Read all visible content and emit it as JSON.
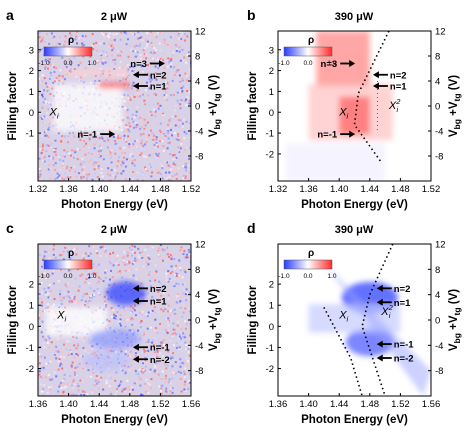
{
  "figure": {
    "shared": {
      "xlabel": "Photon Energy (eV)",
      "ylabel_left": "Filling factor",
      "ylabel_right": "V",
      "ylabel_right_sub1": "bg",
      "ylabel_right_mid": " +V",
      "ylabel_right_sub2": "tg",
      "ylabel_right_unit": " (V)",
      "colorbar_title": "ρ",
      "colorbar_ticks": [
        "-1.0",
        "0.0",
        "1.0"
      ]
    },
    "panels": [
      {
        "id": "a",
        "title": "2 μW"
      },
      {
        "id": "b",
        "title": "390 μW"
      },
      {
        "id": "c",
        "title": "2 μW"
      },
      {
        "id": "d",
        "title": "390 μW"
      }
    ]
  },
  "chart_data": [
    {
      "id": "a",
      "type": "heatmap",
      "title": "2 μW",
      "xlabel": "Photon Energy (eV)",
      "ylabel": "Filling factor",
      "y2label": "Vbg +Vtg (V)",
      "xlim": [
        1.32,
        1.52
      ],
      "xticks": [
        "1.32",
        "1.36",
        "1.40",
        "1.44",
        "1.48",
        "1.52"
      ],
      "ylim_filling": [
        -3.3,
        3.9
      ],
      "yticks_filling": [
        "-1",
        "0",
        "1",
        "2",
        "3"
      ],
      "y2lim": [
        -12,
        12
      ],
      "y2ticks": [
        "-8",
        "-4",
        "0",
        "4",
        "8",
        "12"
      ],
      "colorbar": {
        "label": "ρ",
        "range": [
          -1.0,
          1.0
        ],
        "ticks": [
          "-1.0",
          "0.0",
          "1.0"
        ]
      },
      "annotations": [
        {
          "text": "n=3",
          "x": 1.465,
          "v": 6.8,
          "arrow": "right"
        },
        {
          "text": "n=2",
          "x": 1.465,
          "v": 5.0,
          "arrow": "left"
        },
        {
          "text": "n=1",
          "x": 1.465,
          "v": 3.2,
          "arrow": "left"
        },
        {
          "text": "n=-1",
          "x": 1.4,
          "v": -4.5,
          "arrow": "right"
        }
      ],
      "feature_labels": [
        {
          "text": "X",
          "sub": "i",
          "x": 1.335,
          "v": -1.5
        }
      ]
    },
    {
      "id": "b",
      "type": "heatmap",
      "title": "390 μW",
      "xlabel": "Photon Energy (eV)",
      "ylabel": "Filling factor",
      "y2label": "Vbg +Vtg (V)",
      "xlim": [
        1.32,
        1.52
      ],
      "xticks": [
        "1.32",
        "1.36",
        "1.40",
        "1.44",
        "1.48",
        "1.52"
      ],
      "ylim_filling": [
        -3.3,
        3.9
      ],
      "yticks_filling": [
        "-2",
        "-1",
        "0",
        "1",
        "2",
        "3"
      ],
      "y2lim": [
        -12,
        12
      ],
      "y2ticks": [
        "-8",
        "-4",
        "0",
        "4",
        "8",
        "12"
      ],
      "colorbar": {
        "label": "ρ",
        "range": [
          -1.0,
          1.0
        ],
        "ticks": [
          "-1.0",
          "0.0",
          "1.0"
        ]
      },
      "annotations": [
        {
          "text": "n=3",
          "x": 1.4,
          "v": 6.8,
          "arrow": "right"
        },
        {
          "text": "n=2",
          "x": 1.465,
          "v": 5.0,
          "arrow": "left"
        },
        {
          "text": "n=1",
          "x": 1.465,
          "v": 3.2,
          "arrow": "left"
        },
        {
          "text": "n=-1",
          "x": 1.4,
          "v": -4.5,
          "arrow": "right"
        }
      ],
      "feature_labels": [
        {
          "text": "X",
          "sub": "i",
          "x": 1.4,
          "v": -1.5
        },
        {
          "text": "X",
          "sub": "i",
          "sup": "2",
          "x": 1.465,
          "v": -0.5
        }
      ]
    },
    {
      "id": "c",
      "type": "heatmap",
      "title": "2 μW",
      "xlabel": "Photon Energy (eV)",
      "ylabel": "Filling factor",
      "y2label": "Vbg +Vtg (V)",
      "xlim": [
        1.36,
        1.56
      ],
      "xticks": [
        "1.36",
        "1.40",
        "1.44",
        "1.48",
        "1.52",
        "1.56"
      ],
      "ylim_filling": [
        -3.3,
        3.9
      ],
      "yticks_filling": [
        "-2",
        "-1",
        "0",
        "1",
        "2"
      ],
      "y2lim": [
        -12,
        12
      ],
      "y2ticks": [
        "-8",
        "-4",
        "0",
        "4",
        "8",
        "12"
      ],
      "colorbar": {
        "label": "ρ",
        "range": [
          -1.0,
          1.0
        ],
        "ticks": [
          "-1.0",
          "0.0",
          "1.0"
        ]
      },
      "annotations": [
        {
          "text": "n=2",
          "x": 1.505,
          "v": 5.0,
          "arrow": "left"
        },
        {
          "text": "n=1",
          "x": 1.505,
          "v": 3.0,
          "arrow": "left"
        },
        {
          "text": "n=-1",
          "x": 1.505,
          "v": -4.3,
          "arrow": "left"
        },
        {
          "text": "n=-2",
          "x": 1.505,
          "v": -6.2,
          "arrow": "left"
        }
      ],
      "feature_labels": [
        {
          "text": "X",
          "sub": "i",
          "x": 1.385,
          "v": 0.2
        }
      ]
    },
    {
      "id": "d",
      "type": "heatmap",
      "title": "390 μW",
      "xlabel": "Photon Energy (eV)",
      "ylabel": "Filling factor",
      "y2label": "Vbg +Vtg (V)",
      "xlim": [
        1.36,
        1.56
      ],
      "xticks": [
        "1.36",
        "1.40",
        "1.44",
        "1.48",
        "1.52",
        "1.56"
      ],
      "ylim_filling": [
        -3.3,
        3.9
      ],
      "yticks_filling": [
        "-2",
        "-1",
        "0",
        "1",
        "2"
      ],
      "y2lim": [
        -12,
        12
      ],
      "y2ticks": [
        "-8",
        "-4",
        "0",
        "4",
        "8",
        "12"
      ],
      "colorbar": {
        "label": "ρ",
        "range": [
          -1.0,
          1.0
        ],
        "ticks": [
          "-1.0",
          "0.0",
          "1.0"
        ]
      },
      "annotations": [
        {
          "text": "n=2",
          "x": 1.51,
          "v": 5.0,
          "arrow": "left"
        },
        {
          "text": "n=1",
          "x": 1.51,
          "v": 2.8,
          "arrow": "left"
        },
        {
          "text": "n=-1",
          "x": 1.51,
          "v": -3.8,
          "arrow": "left"
        },
        {
          "text": "n=-2",
          "x": 1.51,
          "v": -6.0,
          "arrow": "left"
        }
      ],
      "feature_labels": [
        {
          "text": "X",
          "sub": "i",
          "x": 1.44,
          "v": 0.2
        },
        {
          "text": "X",
          "sub": "i",
          "sup": "2",
          "x": 1.495,
          "v": 0.8
        }
      ]
    }
  ]
}
